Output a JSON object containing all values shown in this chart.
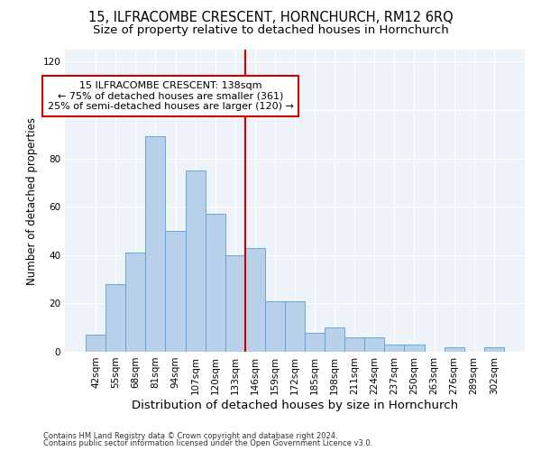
{
  "title": "15, ILFRACOMBE CRESCENT, HORNCHURCH, RM12 6RQ",
  "subtitle": "Size of property relative to detached houses in Hornchurch",
  "xlabel": "Distribution of detached houses by size in Hornchurch",
  "ylabel": "Number of detached properties",
  "bar_labels": [
    "42sqm",
    "55sqm",
    "68sqm",
    "81sqm",
    "94sqm",
    "107sqm",
    "120sqm",
    "133sqm",
    "146sqm",
    "159sqm",
    "172sqm",
    "185sqm",
    "198sqm",
    "211sqm",
    "224sqm",
    "237sqm",
    "250sqm",
    "263sqm",
    "276sqm",
    "289sqm",
    "302sqm"
  ],
  "bar_values": [
    7,
    28,
    41,
    89,
    50,
    75,
    57,
    40,
    43,
    21,
    21,
    8,
    10,
    6,
    6,
    3,
    3,
    0,
    2,
    0,
    2
  ],
  "bar_color": "#b8d0ea",
  "bar_edge_color": "#5a9fd4",
  "annotation_line1": "15 ILFRACOMBE CRESCENT: 138sqm",
  "annotation_line2": "← 75% of detached houses are smaller (361)",
  "annotation_line3": "25% of semi-detached houses are larger (120) →",
  "annotation_box_color": "#cc0000",
  "vline_color": "#cc0000",
  "vline_x": 7.5,
  "ylim": [
    0,
    125
  ],
  "yticks": [
    0,
    20,
    40,
    60,
    80,
    100,
    120
  ],
  "bg_color": "#eef2f9",
  "grid_color": "#ffffff",
  "footer_line1": "Contains HM Land Registry data © Crown copyright and database right 2024.",
  "footer_line2": "Contains public sector information licensed under the Open Government Licence v3.0.",
  "title_fontsize": 10.5,
  "subtitle_fontsize": 9.5,
  "xlabel_fontsize": 9.5,
  "ylabel_fontsize": 8.5,
  "tick_fontsize": 7.5,
  "annotation_fontsize": 8.0,
  "footer_fontsize": 6.0
}
